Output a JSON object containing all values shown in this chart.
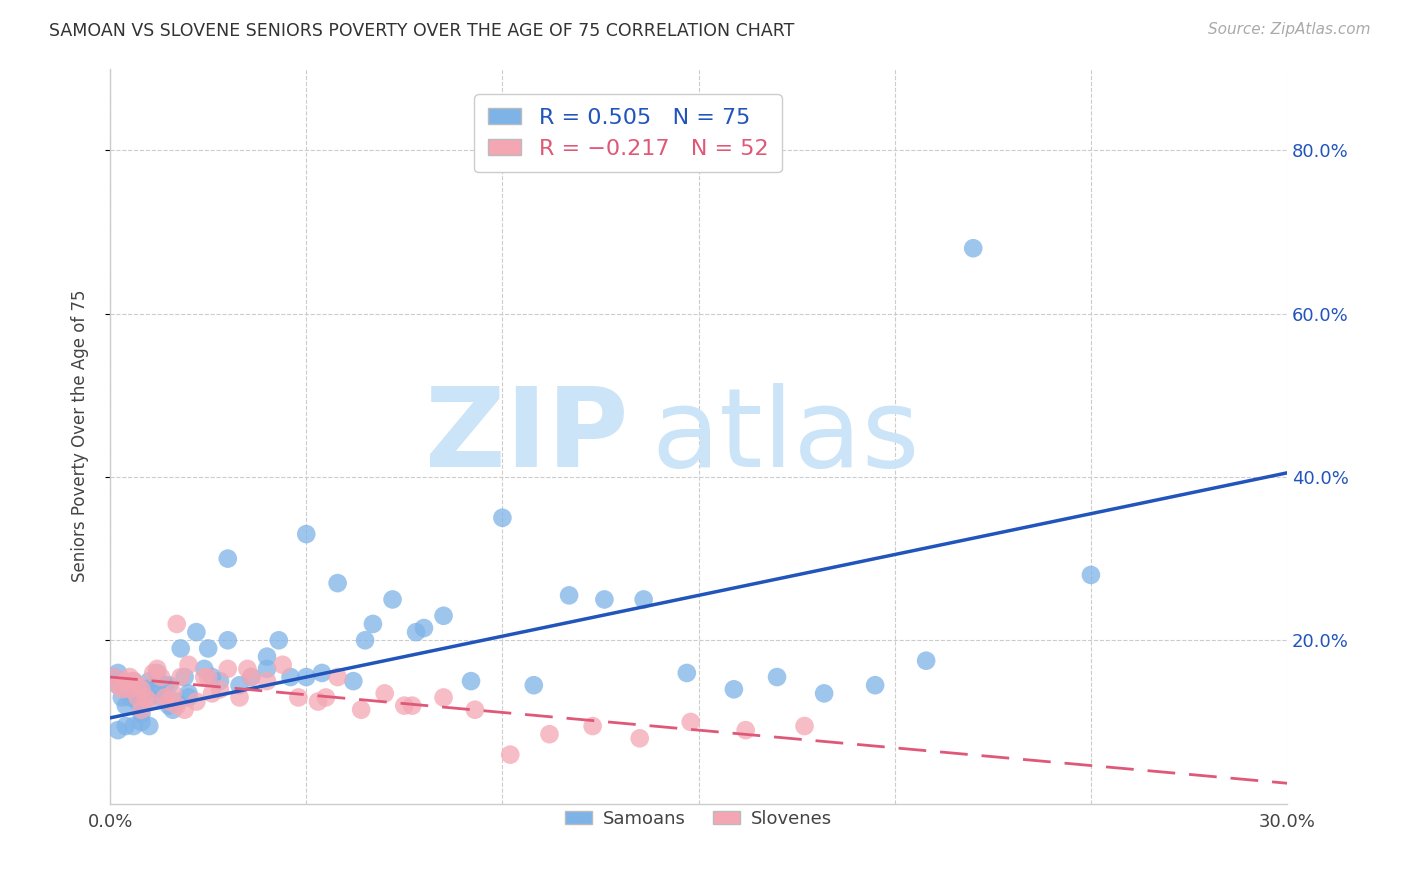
{
  "title": "SAMOAN VS SLOVENE SENIORS POVERTY OVER THE AGE OF 75 CORRELATION CHART",
  "source": "Source: ZipAtlas.com",
  "ylabel": "Seniors Poverty Over the Age of 75",
  "xlim": [
    0.0,
    0.3
  ],
  "ylim": [
    0.0,
    0.9
  ],
  "yticks": [
    0.2,
    0.4,
    0.6,
    0.8
  ],
  "ytick_labels": [
    "20.0%",
    "40.0%",
    "60.0%",
    "80.0%"
  ],
  "xticks": [
    0.0,
    0.3
  ],
  "xtick_labels": [
    "0.0%",
    "30.0%"
  ],
  "samoans_R": 0.505,
  "samoans_N": 75,
  "slovenes_R": -0.217,
  "slovenes_N": 52,
  "samoan_color": "#7EB3E8",
  "slovene_color": "#F4A7B3",
  "samoan_line_color": "#2255BB",
  "slovene_line_color": "#E05878",
  "background_color": "#ffffff",
  "grid_color": "#cccccc",
  "samoans_x": [
    0.001,
    0.002,
    0.002,
    0.003,
    0.003,
    0.004,
    0.004,
    0.005,
    0.005,
    0.006,
    0.006,
    0.007,
    0.007,
    0.008,
    0.008,
    0.009,
    0.01,
    0.01,
    0.011,
    0.012,
    0.012,
    0.013,
    0.014,
    0.015,
    0.015,
    0.016,
    0.017,
    0.018,
    0.019,
    0.02,
    0.022,
    0.024,
    0.026,
    0.028,
    0.03,
    0.033,
    0.036,
    0.04,
    0.043,
    0.046,
    0.05,
    0.054,
    0.058,
    0.062,
    0.067,
    0.072,
    0.078,
    0.085,
    0.092,
    0.1,
    0.108,
    0.117,
    0.126,
    0.136,
    0.147,
    0.159,
    0.17,
    0.182,
    0.195,
    0.208,
    0.002,
    0.004,
    0.006,
    0.008,
    0.01,
    0.015,
    0.02,
    0.025,
    0.03,
    0.04,
    0.05,
    0.065,
    0.08,
    0.22,
    0.25
  ],
  "samoans_y": [
    0.155,
    0.145,
    0.16,
    0.13,
    0.15,
    0.12,
    0.145,
    0.13,
    0.14,
    0.135,
    0.15,
    0.125,
    0.14,
    0.11,
    0.13,
    0.14,
    0.13,
    0.15,
    0.145,
    0.14,
    0.16,
    0.13,
    0.145,
    0.12,
    0.145,
    0.115,
    0.125,
    0.19,
    0.155,
    0.135,
    0.21,
    0.165,
    0.155,
    0.15,
    0.3,
    0.145,
    0.155,
    0.165,
    0.2,
    0.155,
    0.155,
    0.16,
    0.27,
    0.15,
    0.22,
    0.25,
    0.21,
    0.23,
    0.15,
    0.35,
    0.145,
    0.255,
    0.25,
    0.25,
    0.16,
    0.14,
    0.155,
    0.135,
    0.145,
    0.175,
    0.09,
    0.095,
    0.095,
    0.1,
    0.095,
    0.125,
    0.13,
    0.19,
    0.2,
    0.18,
    0.33,
    0.2,
    0.215,
    0.68,
    0.28
  ],
  "slovenes_x": [
    0.001,
    0.002,
    0.003,
    0.004,
    0.005,
    0.005,
    0.006,
    0.007,
    0.007,
    0.008,
    0.008,
    0.009,
    0.01,
    0.011,
    0.012,
    0.013,
    0.014,
    0.015,
    0.016,
    0.017,
    0.018,
    0.019,
    0.02,
    0.022,
    0.024,
    0.026,
    0.028,
    0.03,
    0.033,
    0.036,
    0.04,
    0.044,
    0.048,
    0.053,
    0.058,
    0.064,
    0.07,
    0.077,
    0.085,
    0.093,
    0.102,
    0.112,
    0.123,
    0.135,
    0.148,
    0.162,
    0.177,
    0.017,
    0.025,
    0.035,
    0.055,
    0.075
  ],
  "slovenes_y": [
    0.155,
    0.145,
    0.14,
    0.15,
    0.155,
    0.14,
    0.15,
    0.145,
    0.13,
    0.115,
    0.14,
    0.13,
    0.125,
    0.16,
    0.165,
    0.155,
    0.13,
    0.125,
    0.135,
    0.12,
    0.155,
    0.115,
    0.17,
    0.125,
    0.155,
    0.135,
    0.14,
    0.165,
    0.13,
    0.155,
    0.15,
    0.17,
    0.13,
    0.125,
    0.155,
    0.115,
    0.135,
    0.12,
    0.13,
    0.115,
    0.06,
    0.085,
    0.095,
    0.08,
    0.1,
    0.09,
    0.095,
    0.22,
    0.155,
    0.165,
    0.13,
    0.12
  ],
  "samoan_trendline_x": [
    0.0,
    0.3
  ],
  "samoan_trendline_y": [
    0.105,
    0.405
  ],
  "slovene_trendline_x": [
    0.0,
    0.3
  ],
  "slovene_trendline_y": [
    0.155,
    0.025
  ]
}
